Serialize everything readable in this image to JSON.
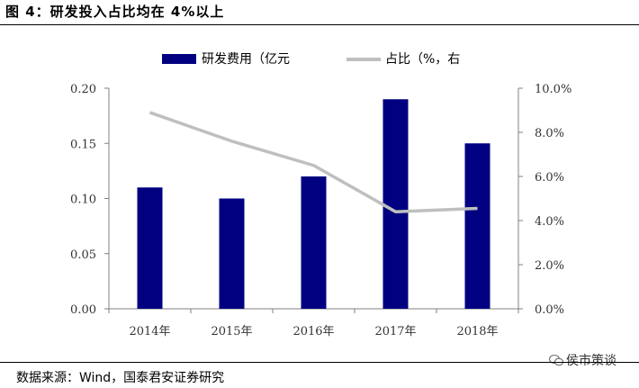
{
  "title": "图 4：研发投入占比均在 4%以上",
  "source": "数据来源：Wind，国泰君安证券研究",
  "watermark": {
    "text": "侯市策谈",
    "icon": "wechat-icon"
  },
  "colors": {
    "bar": "#000080",
    "line": "#BFBFBF"
  },
  "chart_data": {
    "type": "bar",
    "categories": [
      "2014年",
      "2015年",
      "2016年",
      "2017年",
      "2018年"
    ],
    "series": [
      {
        "name": "研发费用（亿元",
        "chart": "bar",
        "axis": "left",
        "values": [
          0.11,
          0.1,
          0.12,
          0.19,
          0.15
        ]
      },
      {
        "name": "占比（%，右",
        "chart": "line",
        "axis": "right",
        "values": [
          8.9,
          7.6,
          6.5,
          4.4,
          4.55
        ]
      }
    ],
    "y_left": {
      "ylim": [
        0,
        0.2
      ],
      "ticks": [
        "0.00",
        "0.05",
        "0.10",
        "0.15",
        "0.20"
      ]
    },
    "y_right": {
      "ylim": [
        0,
        10
      ],
      "ticks": [
        "0.0%",
        "2.0%",
        "4.0%",
        "6.0%",
        "8.0%",
        "10.0%"
      ]
    },
    "legend": "top-center",
    "grid": false
  }
}
